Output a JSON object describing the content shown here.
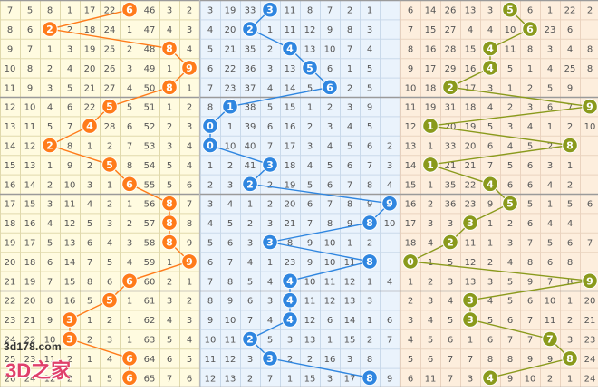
{
  "chart_data": {
    "type": "table",
    "rows": [
      [
        7,
        5,
        8,
        1,
        17,
        22,
        3,
        46,
        3,
        2,
        3,
        19,
        33,
        3,
        11,
        8,
        7,
        2,
        1,
        null,
        6,
        14,
        26,
        13,
        3,
        6,
        6,
        1,
        22,
        2
      ],
      [
        8,
        6,
        2,
        2,
        18,
        24,
        1,
        47,
        4,
        3,
        4,
        20,
        34,
        1,
        11,
        12,
        9,
        8,
        3,
        null,
        7,
        15,
        27,
        4,
        4,
        10,
        1,
        23,
        6,
        null
      ],
      [
        9,
        7,
        1,
        3,
        19,
        25,
        2,
        48,
        8,
        4,
        5,
        21,
        35,
        2,
        12,
        13,
        10,
        7,
        4,
        null,
        8,
        16,
        28,
        15,
        1,
        11,
        8,
        3,
        4,
        8
      ],
      [
        10,
        8,
        2,
        4,
        20,
        26,
        3,
        49,
        1,
        9,
        6,
        22,
        36,
        3,
        13,
        14,
        6,
        1,
        5,
        null,
        9,
        17,
        29,
        16,
        2,
        5,
        1,
        4,
        25,
        8
      ],
      [
        11,
        9,
        3,
        5,
        21,
        27,
        4,
        50,
        5,
        1,
        7,
        23,
        37,
        4,
        14,
        5,
        1,
        2,
        5,
        null,
        10,
        18,
        30,
        17,
        3,
        1,
        2,
        5,
        9,
        null
      ],
      [
        12,
        10,
        4,
        6,
        22,
        5,
        5,
        51,
        1,
        2,
        8,
        24,
        38,
        5,
        15,
        1,
        2,
        3,
        9,
        null,
        11,
        19,
        31,
        18,
        4,
        2,
        3,
        6,
        7,
        1
      ],
      [
        13,
        11,
        5,
        7,
        4,
        28,
        6,
        52,
        2,
        3,
        9,
        1,
        39,
        6,
        16,
        2,
        3,
        4,
        5,
        null,
        12,
        1,
        20,
        19,
        5,
        3,
        4,
        1,
        2,
        10
      ],
      [
        14,
        12,
        2,
        8,
        1,
        2,
        7,
        53,
        3,
        4,
        0,
        10,
        40,
        7,
        17,
        3,
        4,
        5,
        6,
        2,
        13,
        1,
        33,
        20,
        6,
        4,
        5,
        2,
        8,
        null
      ],
      [
        15,
        13,
        1,
        9,
        2,
        5,
        8,
        54,
        5,
        4,
        1,
        2,
        41,
        3,
        18,
        4,
        5,
        6,
        7,
        3,
        14,
        1,
        21,
        21,
        7,
        5,
        6,
        3,
        1,
        null
      ],
      [
        16,
        14,
        2,
        10,
        3,
        1,
        6,
        55,
        5,
        6,
        2,
        3,
        1,
        2,
        19,
        5,
        6,
        7,
        8,
        4,
        15,
        1,
        35,
        22,
        8,
        6,
        6,
        4,
        2,
        null
      ],
      [
        17,
        15,
        3,
        11,
        4,
        2,
        1,
        56,
        8,
        7,
        3,
        4,
        1,
        2,
        20,
        6,
        7,
        8,
        9,
        9,
        16,
        2,
        36,
        23,
        9,
        5,
        5,
        1,
        5,
        6
      ],
      [
        18,
        16,
        4,
        12,
        5,
        3,
        2,
        57,
        8,
        8,
        4,
        5,
        2,
        3,
        21,
        7,
        8,
        9,
        8,
        10,
        17,
        3,
        3,
        10,
        1,
        2,
        6,
        4,
        4,
        null
      ],
      [
        19,
        17,
        5,
        13,
        6,
        4,
        3,
        58,
        8,
        9,
        5,
        6,
        3,
        3,
        8,
        9,
        10,
        1,
        2,
        null,
        18,
        4,
        2,
        11,
        1,
        3,
        7,
        5,
        6,
        7
      ],
      [
        20,
        18,
        6,
        14,
        7,
        5,
        4,
        59,
        1,
        9,
        6,
        7,
        4,
        1,
        23,
        9,
        10,
        11,
        3,
        null,
        0,
        1,
        5,
        12,
        2,
        4,
        8,
        6,
        8,
        null
      ],
      [
        21,
        19,
        7,
        15,
        8,
        6,
        6,
        60,
        2,
        1,
        7,
        8,
        5,
        4,
        24,
        10,
        11,
        12,
        1,
        4,
        1,
        2,
        3,
        13,
        3,
        5,
        9,
        7,
        8,
        null
      ],
      [
        22,
        20,
        8,
        16,
        5,
        1,
        1,
        61,
        3,
        2,
        8,
        9,
        6,
        3,
        1,
        11,
        12,
        13,
        3,
        null,
        2,
        3,
        4,
        3,
        4,
        5,
        6,
        10,
        1,
        20
      ],
      [
        23,
        21,
        9,
        3,
        1,
        2,
        1,
        62,
        4,
        3,
        9,
        10,
        7,
        4,
        2,
        12,
        6,
        14,
        1,
        6,
        3,
        4,
        5,
        3,
        5,
        6,
        7,
        11,
        2,
        21
      ],
      [
        24,
        22,
        10,
        1,
        2,
        3,
        1,
        63,
        5,
        4,
        10,
        11,
        2,
        5,
        3,
        13,
        1,
        15,
        2,
        7,
        4,
        5,
        6,
        1,
        6,
        7,
        7,
        7,
        3,
        23
      ],
      [
        25,
        23,
        11,
        2,
        1,
        4,
        1,
        64,
        6,
        5,
        11,
        12,
        3,
        4,
        2,
        2,
        16,
        3,
        8,
        null,
        5,
        6,
        7,
        7,
        8,
        8,
        9,
        9,
        4,
        24
      ],
      [
        26,
        24,
        12,
        2,
        1,
        5,
        1,
        65,
        7,
        6,
        12,
        13,
        2,
        7,
        1,
        15,
        3,
        17,
        8,
        9,
        6,
        11,
        7,
        3,
        4,
        9,
        10,
        2,
        1,
        24
      ]
    ],
    "highlights": [
      [
        6,
        3,
        5
      ],
      [
        2,
        2,
        6
      ],
      [
        8,
        4,
        4
      ],
      [
        9,
        5,
        4
      ],
      [
        8,
        6,
        2
      ],
      [
        5,
        1,
        9
      ],
      [
        4,
        0,
        1
      ],
      [
        2,
        0,
        8
      ],
      [
        5,
        3,
        1
      ],
      [
        6,
        2,
        4
      ],
      [
        8,
        9,
        5
      ],
      [
        8,
        8,
        3
      ],
      [
        8,
        3,
        2
      ],
      [
        9,
        8,
        0
      ],
      [
        6,
        4,
        9
      ],
      [
        5,
        4,
        3
      ],
      [
        3,
        4,
        3
      ],
      [
        3,
        2,
        7
      ],
      [
        6,
        3,
        8
      ],
      [
        6,
        8,
        4
      ]
    ],
    "section_colors": [
      "#ff7b1a",
      "#2f86e0",
      "#8a9a1c"
    ]
  },
  "watermark": {
    "site": "3d178.com",
    "brand": "3D之家"
  }
}
